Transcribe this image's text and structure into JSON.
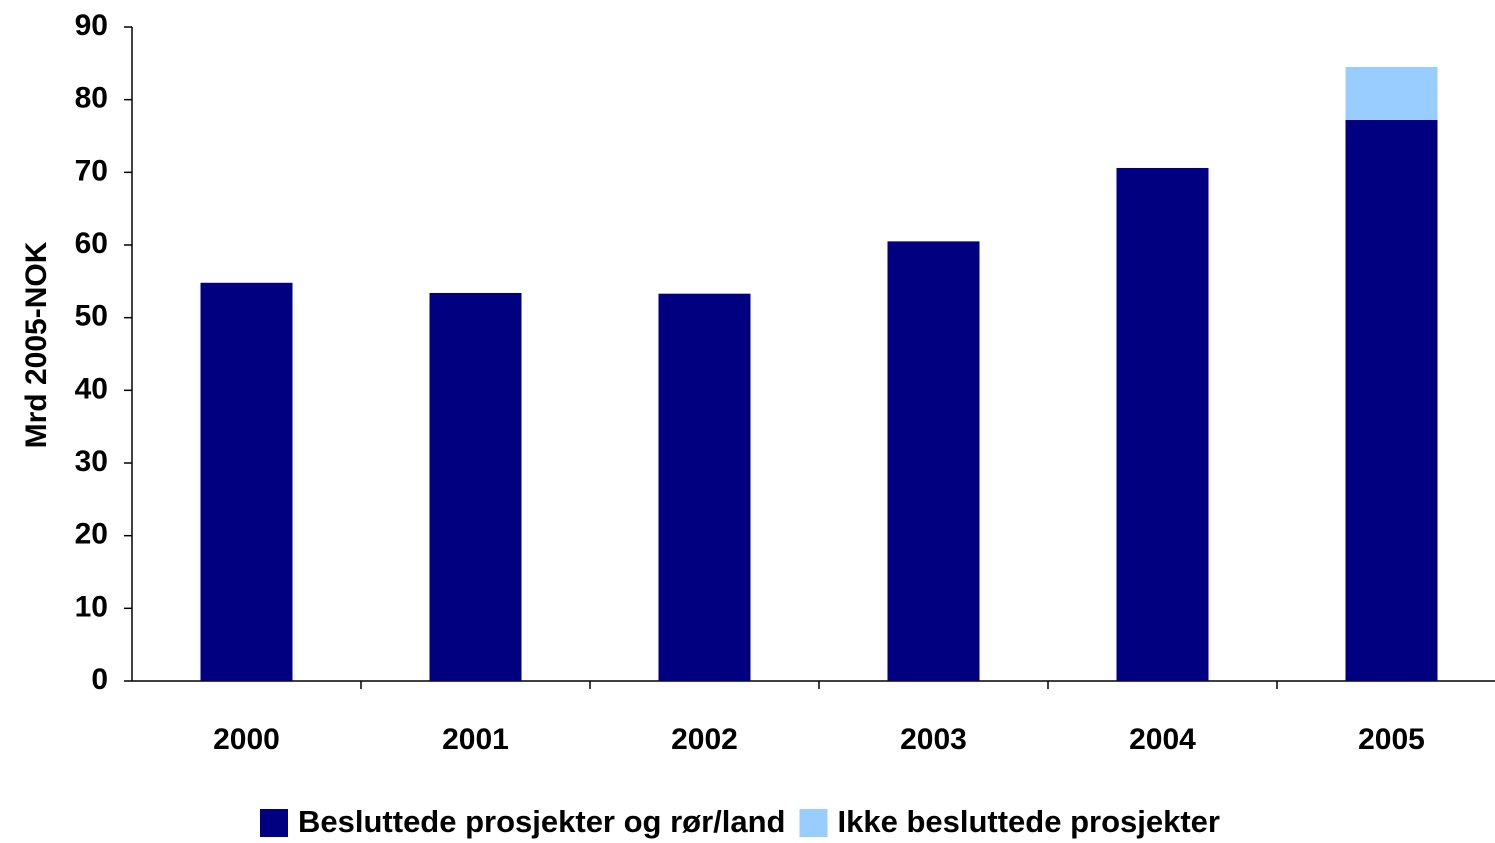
{
  "chart_data": {
    "type": "stacked_bar",
    "y_label": "Mrd 2005-NOK",
    "categories": [
      "2000",
      "2001",
      "2002",
      "2003",
      "2004",
      "2005"
    ],
    "series": [
      {
        "name": "Besluttede prosjekter og rør/land",
        "color": "#000080",
        "values": [
          54.8,
          53.4,
          53.3,
          60.5,
          70.6,
          77.2
        ]
      },
      {
        "name": "Ikke besluttede prosjekter",
        "color": "#99ccff",
        "values": [
          null,
          null,
          null,
          null,
          null,
          7.3
        ]
      }
    ],
    "ylim": [
      0,
      90
    ],
    "yticks": [
      0,
      10,
      20,
      30,
      40,
      50,
      60,
      70,
      80,
      90
    ],
    "legend": "bottom"
  }
}
